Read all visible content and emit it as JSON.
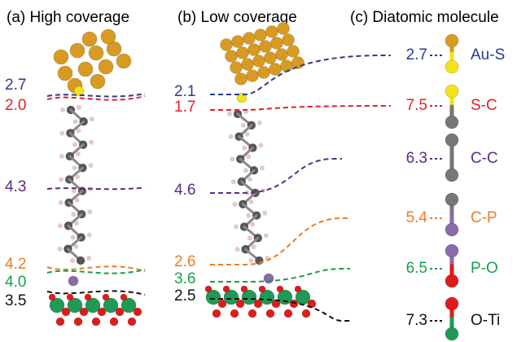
{
  "panels": [
    {
      "title": "(a) High coverage",
      "labels": [
        {
          "text": "2.7",
          "color": "#2a3a8c"
        },
        {
          "text": "2.0",
          "color": "#e3202a"
        },
        {
          "text": "4.3",
          "color": "#5a2d84"
        },
        {
          "text": "4.2",
          "color": "#ef7b26"
        },
        {
          "text": "4.0",
          "color": "#17a04a"
        },
        {
          "text": "3.5",
          "color": "#111111"
        }
      ]
    },
    {
      "title": "(b) Low coverage",
      "labels": [
        {
          "text": "2.1",
          "color": "#2a3a8c"
        },
        {
          "text": "1.7",
          "color": "#e3202a"
        },
        {
          "text": "4.6",
          "color": "#5a2d84"
        },
        {
          "text": "2.6",
          "color": "#ef7b26"
        },
        {
          "text": "3.6",
          "color": "#17a04a"
        },
        {
          "text": "2.5",
          "color": "#111111"
        }
      ]
    },
    {
      "title": "(c) Diatomic molecule",
      "molecules": [
        {
          "value": "2.7",
          "bond": "Au-S",
          "color": "#2a3a8c"
        },
        {
          "value": "7.5",
          "bond": "S-C",
          "color": "#e3202a"
        },
        {
          "value": "6.3",
          "bond": "C-C",
          "color": "#5a2d84"
        },
        {
          "value": "5.4",
          "bond": "C-P",
          "color": "#ef7b26"
        },
        {
          "value": "6.5",
          "bond": "P-O",
          "color": "#17a04a"
        },
        {
          "value": "7.3",
          "bond": "O-Ti",
          "color": "#111111"
        }
      ]
    }
  ]
}
